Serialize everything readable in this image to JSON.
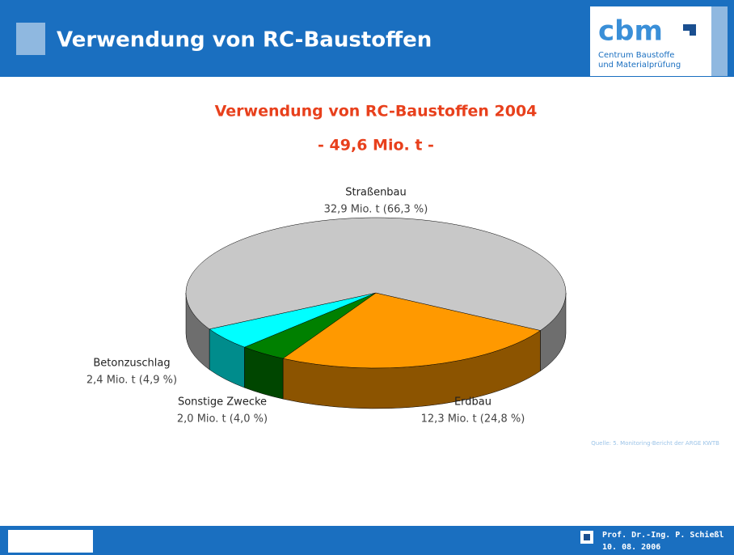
{
  "header": {
    "title": "Verwendung von RC-Baustoffen",
    "logo": "cbm",
    "logo_lines": [
      "Centrum Baustoffe",
      "und Materialprüfung"
    ]
  },
  "chart_data": {
    "type": "pie",
    "title": "Verwendung von RC-Baustoffen 2004",
    "subtitle": "- 49,6 Mio. t -",
    "categories": [
      "Erdbau",
      "Sonstige Zwecke",
      "Betonzuschlag",
      "Straßenbau"
    ],
    "values": [
      12.3,
      2.0,
      2.4,
      32.9
    ],
    "value_labels": [
      "12,3 Mio. t (24,8 %)",
      "2,0 Mio. t (4,0 %)",
      "2,4 Mio. t (4,9 %)",
      "32,9 Mio. t (66,3 %)"
    ],
    "colors": [
      "#ff9900",
      "#008000",
      "#00ffff",
      "#c8c8c8"
    ],
    "source": "Quelle: 5. Monitoring-Bericht der ARGE KWTB"
  },
  "footer": {
    "author": "Prof. Dr.-Ing. P. Schießl",
    "date": "10. 08. 2006"
  }
}
